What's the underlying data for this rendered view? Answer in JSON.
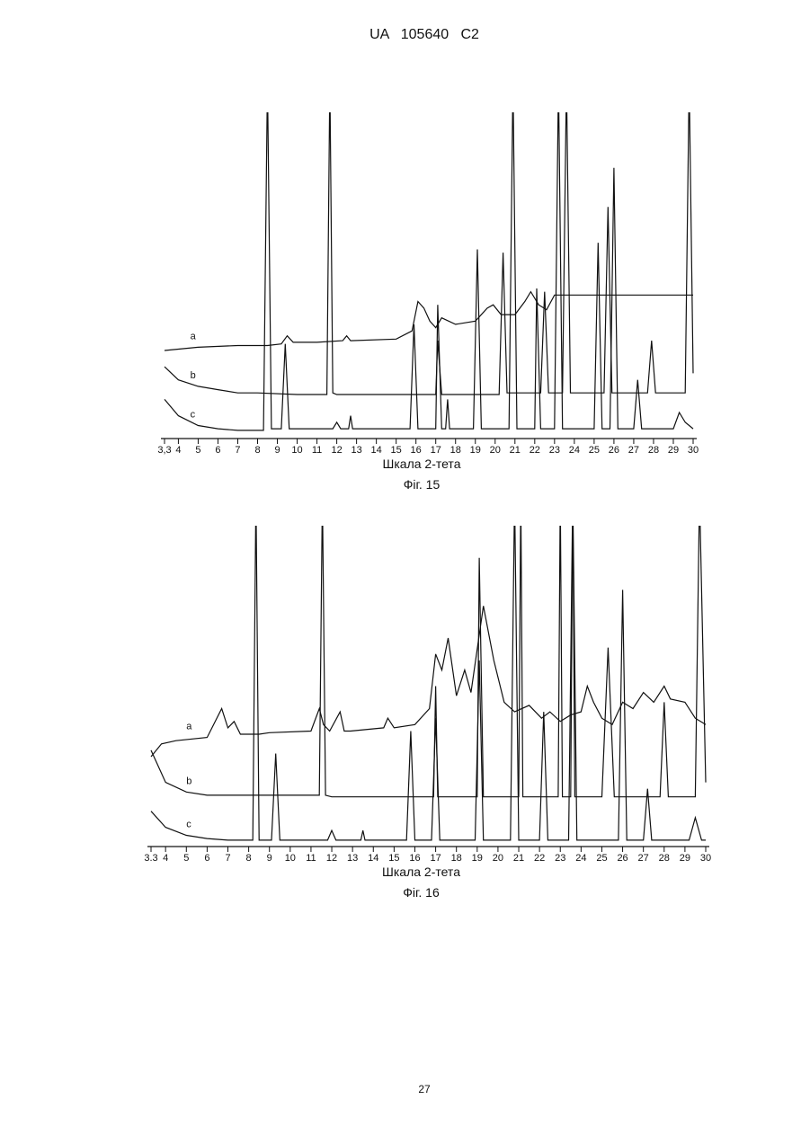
{
  "header": {
    "title": "UA   105640   C2"
  },
  "page_number": "27",
  "chart_data": [
    {
      "type": "line",
      "caption": "Фіг. 15",
      "xlabel": "Шкала 2-тета",
      "xlim": [
        3.3,
        30
      ],
      "ylim": [
        0,
        100
      ],
      "xticks": [
        {
          "value": 3.3,
          "label": "3,3"
        },
        4,
        5,
        6,
        7,
        8,
        9,
        10,
        11,
        12,
        13,
        14,
        15,
        16,
        17,
        18,
        19,
        20,
        21,
        22,
        23,
        24,
        25,
        26,
        27,
        28,
        29,
        30
      ],
      "series": [
        {
          "name": "a",
          "color": "#111111",
          "x": [
            3.3,
            5,
            7,
            8.5,
            9.2,
            9.5,
            9.8,
            11,
            12.3,
            12.5,
            12.7,
            15,
            15.8,
            16.1,
            16.4,
            16.7,
            17,
            17.3,
            18,
            19,
            19.6,
            19.9,
            20.3,
            21,
            21.5,
            21.8,
            22.2,
            22.6,
            23,
            24,
            25,
            26,
            27,
            28,
            29,
            30
          ],
          "values": [
            27,
            28,
            28.5,
            28.5,
            29,
            31.5,
            29.5,
            29.5,
            30,
            31.5,
            30,
            30.5,
            33,
            42,
            40,
            36,
            34,
            37,
            35,
            36,
            40,
            41,
            38,
            38,
            42,
            45,
            41,
            39.5,
            44,
            44,
            44,
            44,
            44,
            44,
            44,
            44
          ]
        },
        {
          "name": "b",
          "color": "#111111",
          "x": [
            3.3,
            4,
            5,
            6,
            7,
            8,
            10,
            11.5,
            11.65,
            11.8,
            12,
            15,
            16,
            17,
            17.1,
            17.3,
            19,
            20.2,
            20.4,
            20.6,
            21.5,
            22.3,
            22.5,
            22.7,
            23.4,
            23.6,
            23.8,
            25.5,
            25.7,
            25.9,
            26.5,
            27.7,
            27.9,
            28.1,
            29.6,
            29.8,
            30
          ],
          "values": [
            22,
            18,
            16,
            15,
            14,
            14,
            13.5,
            13.5,
            110,
            14,
            13.5,
            13.5,
            13.5,
            13.5,
            30,
            13.5,
            13.5,
            13.5,
            57,
            14,
            14,
            14,
            45,
            14,
            14,
            110,
            14,
            14,
            71,
            14,
            14,
            14,
            30,
            14,
            14,
            110,
            20
          ]
        },
        {
          "name": "c",
          "color": "#111111",
          "x": [
            3.3,
            4,
            5,
            6,
            7,
            8,
            8.3,
            8.5,
            8.7,
            9.2,
            9.4,
            9.6,
            11.8,
            12,
            12.2,
            12.6,
            12.7,
            12.8,
            15.7,
            15.9,
            16.1,
            17,
            17.1,
            17.3,
            17.5,
            17.6,
            17.7,
            18.9,
            19.1,
            19.3,
            20.7,
            20.9,
            21.1,
            22,
            22.1,
            22.3,
            23,
            23.2,
            23.4,
            25,
            25.2,
            25.4,
            25.8,
            26,
            26.2,
            27,
            27.2,
            27.4,
            29,
            29.3,
            29.6,
            30
          ],
          "values": [
            12,
            7,
            4,
            3,
            2.5,
            2.5,
            2.5,
            110,
            3,
            3,
            29,
            3,
            3,
            5,
            3,
            3,
            7,
            3,
            3,
            35,
            3,
            3,
            41,
            3,
            3,
            12,
            3,
            3,
            58,
            3,
            3,
            110,
            3,
            3,
            46,
            3,
            3,
            110,
            3,
            3,
            60,
            3,
            3,
            83,
            3,
            3,
            18,
            3,
            3,
            8,
            5,
            3
          ]
        }
      ]
    },
    {
      "type": "line",
      "caption": "Фіг. 16",
      "xlabel": "Шкала 2-тета",
      "xlim": [
        3.3,
        30
      ],
      "ylim": [
        0,
        100
      ],
      "xticks": [
        {
          "value": 3.3,
          "label": "3.3"
        },
        4,
        5,
        6,
        7,
        8,
        9,
        10,
        11,
        12,
        13,
        14,
        15,
        16,
        17,
        18,
        19,
        20,
        21,
        22,
        23,
        24,
        25,
        26,
        27,
        28,
        29,
        30
      ],
      "series": [
        {
          "name": "a",
          "color": "#111111",
          "x": [
            3.3,
            3.8,
            4.5,
            6,
            6.7,
            7,
            7.3,
            7.6,
            8,
            8.5,
            9,
            11,
            11.4,
            11.6,
            11.9,
            12.4,
            12.6,
            12.9,
            14.5,
            14.7,
            15,
            16,
            16.7,
            17,
            17.3,
            17.6,
            18,
            18.4,
            18.7,
            19.3,
            19.8,
            20.3,
            20.8,
            21.5,
            22.1,
            22.5,
            23,
            23.5,
            24,
            24.3,
            24.6,
            25,
            25.5,
            26,
            26.5,
            27,
            27.5,
            28,
            28.3,
            29,
            29.5,
            30
          ],
          "values": [
            28,
            32,
            33,
            34,
            43,
            37,
            39,
            35,
            35,
            35,
            35.5,
            36,
            43,
            38,
            36,
            42,
            36,
            36,
            37,
            40,
            37,
            38,
            43,
            60,
            55,
            65,
            47,
            55,
            48,
            75,
            58,
            45,
            42,
            44,
            40,
            42,
            39,
            41,
            42,
            50,
            45,
            40,
            38,
            45,
            43,
            48,
            45,
            50,
            46,
            45,
            40,
            38
          ]
        },
        {
          "name": "b",
          "color": "#111111",
          "x": [
            3.3,
            4,
            5,
            6,
            7,
            8,
            11.4,
            11.55,
            11.7,
            12,
            16.9,
            17,
            17.1,
            19,
            19.1,
            19.3,
            21,
            21.1,
            21.2,
            22.9,
            23,
            23.1,
            23.5,
            23.6,
            23.7,
            25,
            25.3,
            25.6,
            27.8,
            28,
            28.2,
            29.5,
            29.7,
            30
          ],
          "values": [
            30,
            20,
            17,
            16,
            16,
            16,
            16,
            110,
            16,
            15.5,
            15.5,
            50,
            15.5,
            15.5,
            90,
            15.5,
            15.5,
            110,
            15.5,
            15.5,
            110,
            15.5,
            15.5,
            110,
            15.5,
            15.5,
            62,
            15.5,
            15.5,
            45,
            15.5,
            15.5,
            110,
            20
          ]
        },
        {
          "name": "c",
          "color": "#111111",
          "x": [
            3.3,
            4,
            5,
            6,
            7,
            8,
            8.2,
            8.35,
            8.5,
            9.1,
            9.3,
            9.5,
            11.8,
            12,
            12.2,
            13.4,
            13.5,
            13.6,
            15.6,
            15.8,
            16,
            16.8,
            17,
            17.2,
            18.9,
            19.1,
            19.3,
            20.6,
            20.8,
            21,
            22,
            22.2,
            22.4,
            23.4,
            23.6,
            23.8,
            25.8,
            26,
            26.2,
            27,
            27.2,
            27.4,
            29.2,
            29.5,
            29.8,
            30
          ],
          "values": [
            11,
            6,
            3.5,
            2.5,
            2,
            2,
            2,
            110,
            2,
            2,
            29,
            2,
            2,
            5,
            2,
            2,
            5,
            2,
            2,
            36,
            2,
            2,
            40,
            2,
            2,
            58,
            2,
            2,
            110,
            2,
            2,
            42,
            2,
            2,
            110,
            2,
            2,
            80,
            2,
            2,
            18,
            2,
            2,
            9,
            2,
            2
          ]
        }
      ]
    }
  ]
}
